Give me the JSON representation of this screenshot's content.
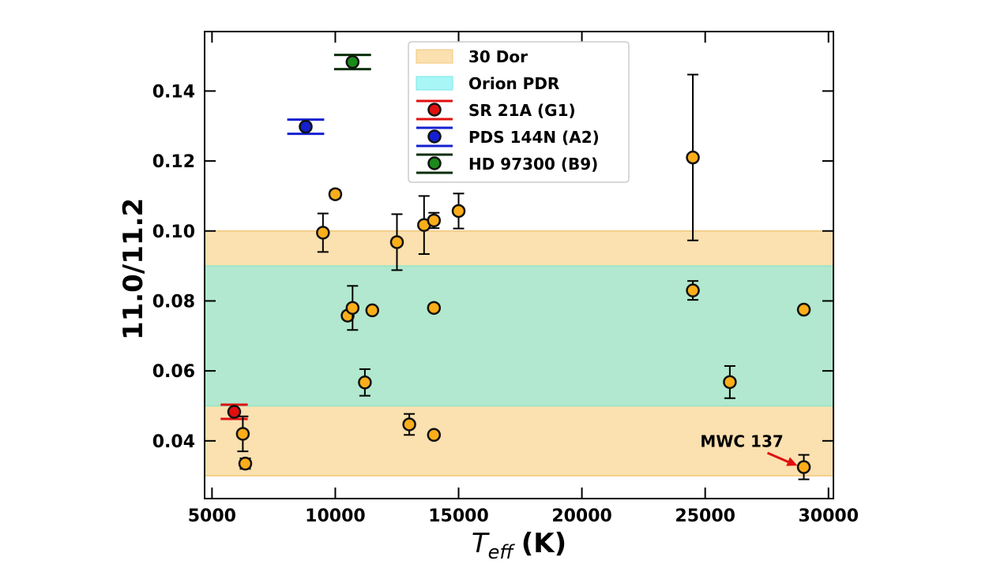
{
  "chart_data": {
    "type": "scatter",
    "title": "",
    "xlabel_main": "T",
    "xlabel_sub": "eff",
    "xlabel_unit": "(K)",
    "ylabel": "11.0/11.2",
    "xlim": [
      4700,
      30200
    ],
    "ylim": [
      0.0235,
      0.157
    ],
    "xticks": [
      5000,
      10000,
      15000,
      20000,
      25000,
      30000
    ],
    "xtick_labels": [
      "5000",
      "10000",
      "15000",
      "20000",
      "25000",
      "30000"
    ],
    "yticks": [
      0.04,
      0.06,
      0.08,
      0.1,
      0.12,
      0.14
    ],
    "ytick_labels": [
      "0.04",
      "0.06",
      "0.08",
      "0.10",
      "0.12",
      "0.14"
    ],
    "grid": false,
    "legend_position": "top-center",
    "bands": [
      {
        "name": "30 Dor",
        "ymin": 0.03,
        "ymax": 0.1,
        "color": "#fbe0b0"
      },
      {
        "name": "Orion PDR",
        "ymin": 0.05,
        "ymax": 0.09,
        "color": "#b2e8cf",
        "legend_color": "#a8f6f6"
      }
    ],
    "series": [
      {
        "name": "SR 21A (G1)",
        "color": "#e01010",
        "errcolor": "#e01010",
        "style": "xerr",
        "points": [
          {
            "x": 5900,
            "y": 0.0483,
            "xerr": 550
          }
        ]
      },
      {
        "name": "PDS 144N (A2)",
        "color": "#1520d0",
        "errcolor": "#1520d0",
        "style": "xerr",
        "points": [
          {
            "x": 8800,
            "y": 0.1298,
            "xerr": 750
          }
        ]
      },
      {
        "name": "HD 97300 (B9)",
        "color": "#1a8a1a",
        "errcolor": "#0c2e0c",
        "style": "xerr",
        "points": [
          {
            "x": 10700,
            "y": 0.1483,
            "xerr": 750
          }
        ]
      },
      {
        "name": "",
        "color": "#fbae1a",
        "errcolor": "#000000",
        "style": "yerr",
        "points": [
          {
            "x": 6250,
            "y": 0.042,
            "yerr": 0.005
          },
          {
            "x": 6350,
            "y": 0.0335,
            "yerr": 0.0015
          },
          {
            "x": 9500,
            "y": 0.0995,
            "yerr": 0.0055
          },
          {
            "x": 10000,
            "y": 0.1105,
            "yerr": 0.0012
          },
          {
            "x": 10500,
            "y": 0.0758,
            "yerr": 0.001
          },
          {
            "x": 10700,
            "y": 0.078,
            "yerr": 0.0063
          },
          {
            "x": 11200,
            "y": 0.0567,
            "yerr": 0.0038
          },
          {
            "x": 11500,
            "y": 0.0773,
            "yerr": 0.0008
          },
          {
            "x": 12500,
            "y": 0.0968,
            "yerr": 0.008
          },
          {
            "x": 13000,
            "y": 0.0447,
            "yerr": 0.003
          },
          {
            "x": 13600,
            "y": 0.1017,
            "yerr": 0.0083
          },
          {
            "x": 14000,
            "y": 0.103,
            "yerr": 0.0022
          },
          {
            "x": 14000,
            "y": 0.078,
            "yerr": 0.0008
          },
          {
            "x": 14000,
            "y": 0.0417,
            "yerr": 0.0008
          },
          {
            "x": 15000,
            "y": 0.1057,
            "yerr": 0.005
          },
          {
            "x": 24500,
            "y": 0.121,
            "yerr": 0.0237
          },
          {
            "x": 24500,
            "y": 0.083,
            "yerr": 0.0027
          },
          {
            "x": 26000,
            "y": 0.0568,
            "yerr": 0.0046
          },
          {
            "x": 29000,
            "y": 0.0775,
            "yerr": 0.0008
          },
          {
            "x": 29000,
            "y": 0.0325,
            "yerr": 0.0035
          }
        ]
      }
    ],
    "annotations": [
      {
        "text": "MWC 137",
        "target_x": 29000,
        "target_y": 0.0325,
        "text_x": 24800,
        "text_y": 0.0383,
        "arrow_color": "#e01010"
      }
    ]
  }
}
